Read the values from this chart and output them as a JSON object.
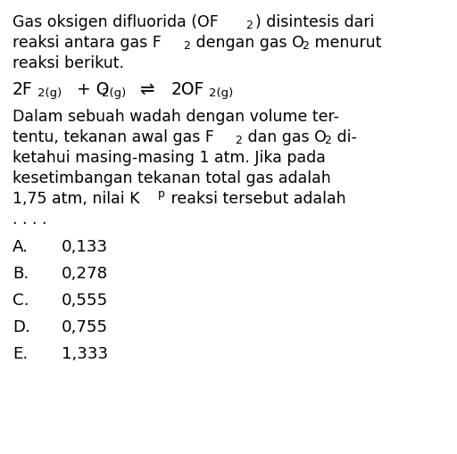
{
  "bg_color": "#ffffff",
  "text_color": "#000000",
  "figsize": [
    5.12,
    5.09
  ],
  "dpi": 100,
  "font_family": "DejaVu Sans",
  "fs_main": 12.5,
  "fs_sub": 9.0,
  "fs_eq_main": 13.5,
  "fs_eq_sub": 9.5,
  "options": [
    {
      "label": "A.",
      "value": "0,133"
    },
    {
      "label": "B.",
      "value": "0,278"
    },
    {
      "label": "C.",
      "value": "0,555"
    },
    {
      "label": "D.",
      "value": "0,755"
    },
    {
      "label": "E.",
      "value": "1,333"
    }
  ]
}
